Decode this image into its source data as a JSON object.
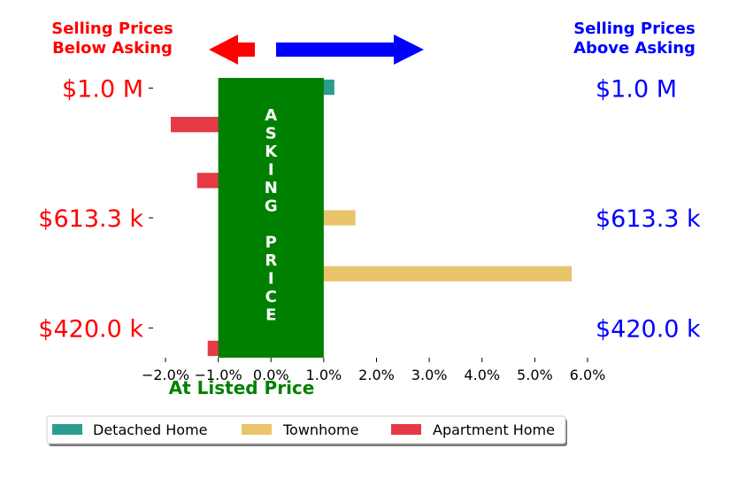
{
  "chart_data": {
    "type": "bar",
    "orientation": "horizontal",
    "xlim": [
      -2.0,
      6.0
    ],
    "x_ticks": [
      "−2.0%",
      "−1.0%",
      "0.0%",
      "1.0%",
      "2.0%",
      "3.0%",
      "4.0%",
      "5.0%",
      "6.0%"
    ],
    "y_tick_labels_left": [
      "$1.0 M",
      "$613.3 k",
      "$420.0 k"
    ],
    "y_tick_labels_right": [
      "$1.0 M",
      "$613.3 k",
      "$420.0 k"
    ],
    "price_levels": [
      {
        "label": "$1.0 M",
        "values": [
          1.2,
          0,
          -1.9
        ]
      },
      {
        "label": "",
        "values": [
          0,
          0,
          -1.4
        ]
      },
      {
        "label": "$613.3 k",
        "values": [
          0,
          1.6,
          0
        ]
      },
      {
        "label": "",
        "values": [
          0,
          5.7,
          0
        ]
      },
      {
        "label": "$420.0 k",
        "values": [
          0,
          0,
          -1.2
        ]
      }
    ],
    "series": [
      {
        "name": "Detached Home",
        "color": "#2a9d8f"
      },
      {
        "name": "Townhome",
        "color": "#e9c46a"
      },
      {
        "name": "Apartment Home",
        "color": "#e63946"
      }
    ],
    "band": {
      "from": -1.0,
      "to": 1.0,
      "color": "#008000",
      "text_lines": [
        "A",
        "S",
        "K",
        "I",
        "N",
        "G",
        "",
        "P",
        "R",
        "I",
        "C",
        "E"
      ]
    },
    "left_header": [
      "Selling Prices",
      "Below Asking"
    ],
    "right_header": [
      "Selling Prices",
      "Above Asking"
    ],
    "xlabel": "At Listed Price",
    "colors": {
      "below": "#ff0000",
      "above": "#0000ff",
      "listed": "#008000"
    },
    "legend_placement": "bottom-left"
  }
}
